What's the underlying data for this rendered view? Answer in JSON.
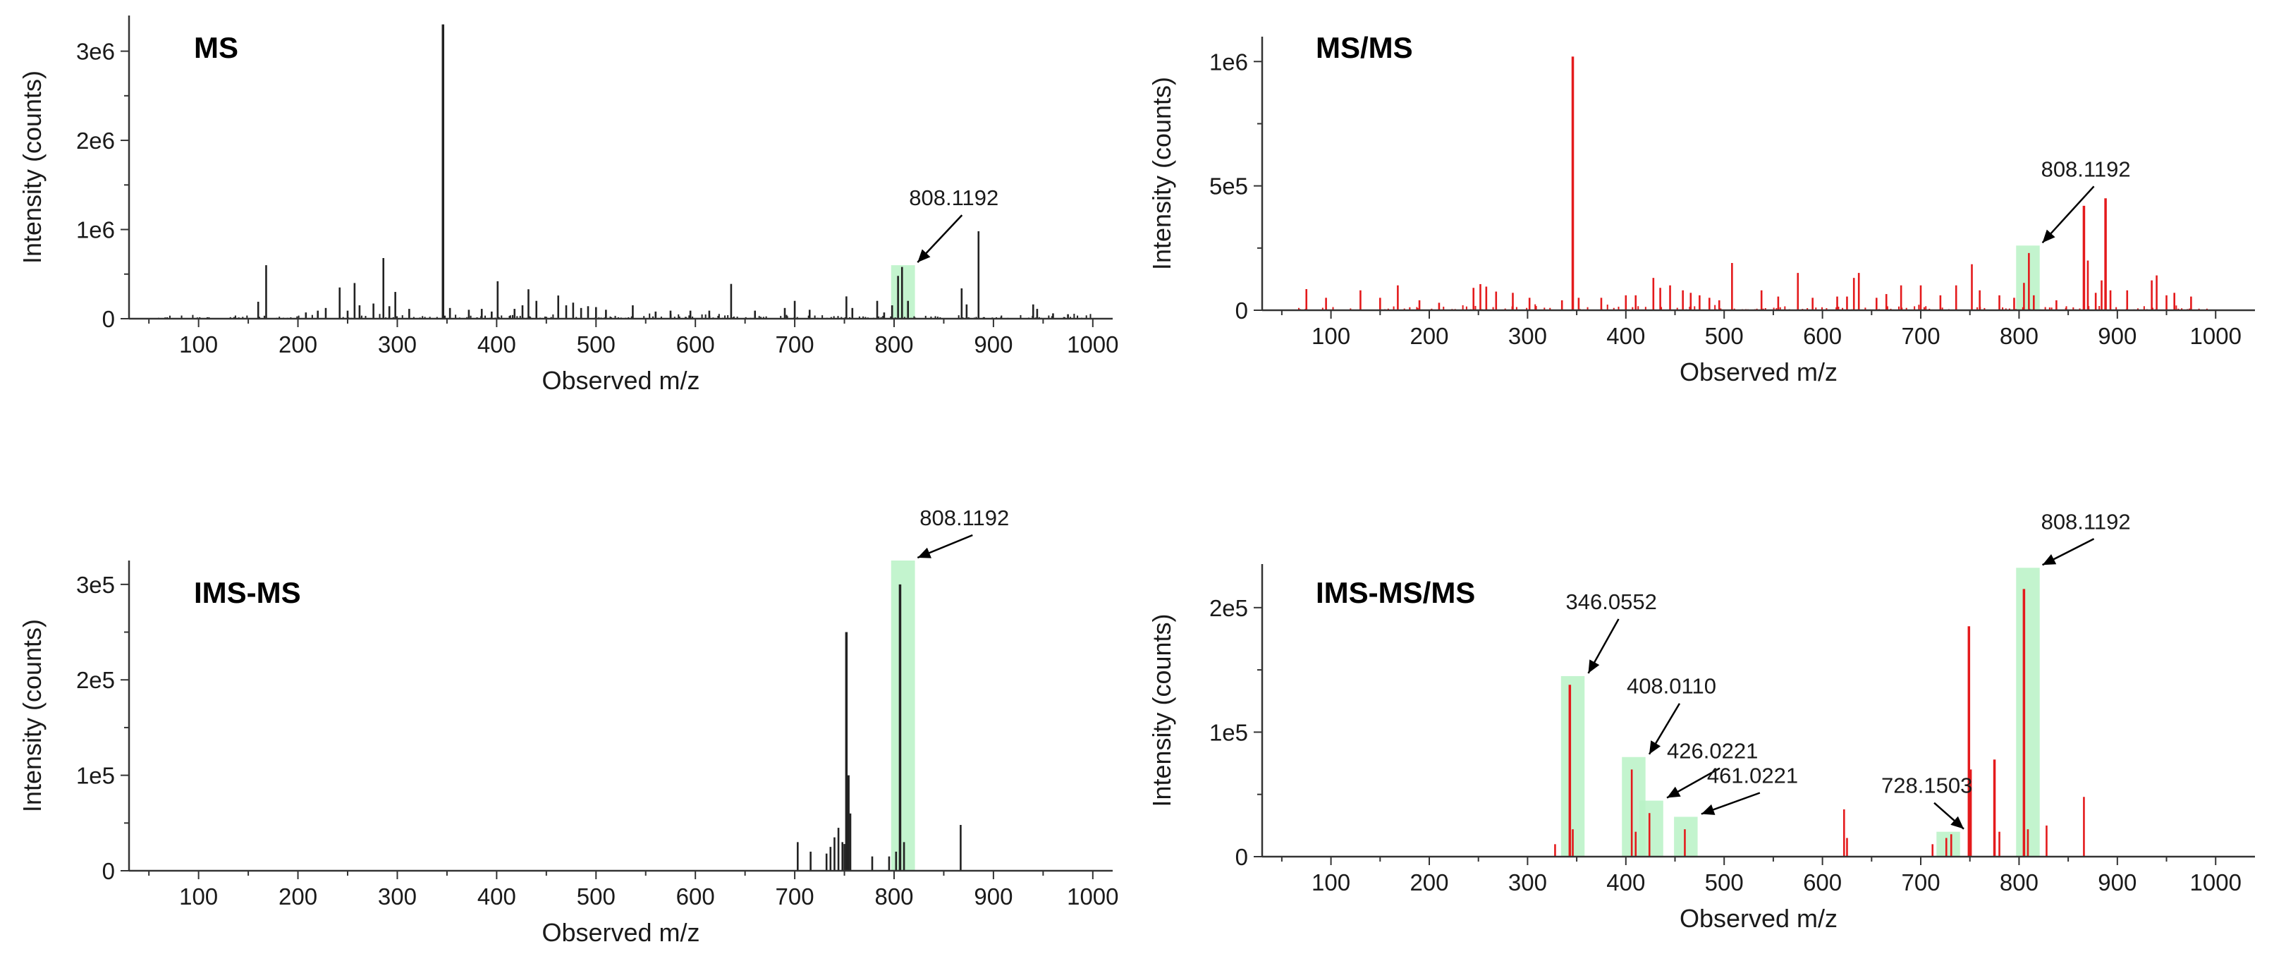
{
  "chart_data": [
    {
      "type": "bar",
      "title": "MS",
      "xlabel": "Observed m/z",
      "ylabel": "Intensity (counts)",
      "xlim": [
        30,
        1020
      ],
      "ylim": [
        0,
        3400000
      ],
      "xticks": [
        100,
        200,
        300,
        400,
        500,
        600,
        700,
        800,
        900,
        1000
      ],
      "yticks": [
        {
          "v": 0,
          "label": "0"
        },
        {
          "v": 1000000,
          "label": "1e6"
        },
        {
          "v": 2000000,
          "label": "2e6"
        },
        {
          "v": 3000000,
          "label": "3e6"
        }
      ],
      "color": "#222222",
      "highlights": [
        {
          "x0": 797,
          "x1": 821,
          "y": 600000
        }
      ],
      "annotations": [
        {
          "text": "808.1192",
          "x": 808,
          "y": 600000
        }
      ],
      "noise": {
        "from": 50,
        "to": 1000,
        "step": 3,
        "max": 60000,
        "seed": 11
      },
      "peaks": [
        [
          160,
          190000
        ],
        [
          168,
          600000
        ],
        [
          208,
          70000
        ],
        [
          220,
          90000
        ],
        [
          228,
          120000
        ],
        [
          242,
          350000
        ],
        [
          250,
          90000
        ],
        [
          257,
          400000
        ],
        [
          262,
          150000
        ],
        [
          276,
          170000
        ],
        [
          286,
          680000
        ],
        [
          292,
          140000
        ],
        [
          298,
          300000
        ],
        [
          312,
          110000
        ],
        [
          346,
          3300000
        ],
        [
          353,
          120000
        ],
        [
          372,
          100000
        ],
        [
          385,
          110000
        ],
        [
          395,
          80000
        ],
        [
          401,
          420000
        ],
        [
          418,
          110000
        ],
        [
          426,
          150000
        ],
        [
          432,
          330000
        ],
        [
          440,
          200000
        ],
        [
          462,
          260000
        ],
        [
          470,
          150000
        ],
        [
          477,
          180000
        ],
        [
          485,
          120000
        ],
        [
          492,
          140000
        ],
        [
          500,
          130000
        ],
        [
          510,
          100000
        ],
        [
          537,
          150000
        ],
        [
          560,
          80000
        ],
        [
          575,
          90000
        ],
        [
          595,
          90000
        ],
        [
          614,
          90000
        ],
        [
          636,
          390000
        ],
        [
          660,
          90000
        ],
        [
          690,
          120000
        ],
        [
          700,
          200000
        ],
        [
          715,
          100000
        ],
        [
          752,
          250000
        ],
        [
          758,
          120000
        ],
        [
          783,
          200000
        ],
        [
          790,
          70000
        ],
        [
          798,
          150000
        ],
        [
          804,
          480000
        ],
        [
          808,
          580000
        ],
        [
          814,
          200000
        ],
        [
          868,
          340000
        ],
        [
          873,
          160000
        ],
        [
          885,
          980000
        ],
        [
          940,
          160000
        ],
        [
          944,
          110000
        ],
        [
          960,
          60000
        ],
        [
          975,
          50000
        ]
      ]
    },
    {
      "type": "bar",
      "title": "MS/MS",
      "xlabel": "Observed m/z",
      "ylabel": "Intensity (counts)",
      "xlim": [
        30,
        1040
      ],
      "ylim": [
        0,
        1100000
      ],
      "xticks": [
        100,
        200,
        300,
        400,
        500,
        600,
        700,
        800,
        900,
        1000
      ],
      "yticks": [
        {
          "v": 0,
          "label": "0"
        },
        {
          "v": 500000,
          "label": "5e5"
        },
        {
          "v": 1000000,
          "label": "1e6"
        }
      ],
      "color": "#e41a1c",
      "highlights": [
        {
          "x0": 797,
          "x1": 821,
          "y": 260000
        }
      ],
      "annotations": [
        {
          "text": "808.1192",
          "x": 808,
          "y": 260000
        }
      ],
      "noise": {
        "from": 60,
        "to": 990,
        "step": 4,
        "max": 25000,
        "seed": 23
      },
      "peaks": [
        [
          75,
          85000
        ],
        [
          95,
          50000
        ],
        [
          130,
          80000
        ],
        [
          150,
          50000
        ],
        [
          168,
          100000
        ],
        [
          190,
          40000
        ],
        [
          210,
          30000
        ],
        [
          245,
          90000
        ],
        [
          252,
          105000
        ],
        [
          258,
          95000
        ],
        [
          268,
          75000
        ],
        [
          285,
          70000
        ],
        [
          302,
          50000
        ],
        [
          335,
          40000
        ],
        [
          346,
          1020000
        ],
        [
          352,
          50000
        ],
        [
          375,
          50000
        ],
        [
          400,
          60000
        ],
        [
          410,
          60000
        ],
        [
          428,
          130000
        ],
        [
          435,
          90000
        ],
        [
          445,
          100000
        ],
        [
          458,
          80000
        ],
        [
          466,
          70000
        ],
        [
          475,
          60000
        ],
        [
          485,
          50000
        ],
        [
          495,
          40000
        ],
        [
          508,
          190000
        ],
        [
          538,
          80000
        ],
        [
          555,
          55000
        ],
        [
          575,
          150000
        ],
        [
          590,
          50000
        ],
        [
          615,
          55000
        ],
        [
          625,
          55000
        ],
        [
          632,
          130000
        ],
        [
          637,
          150000
        ],
        [
          655,
          50000
        ],
        [
          665,
          65000
        ],
        [
          680,
          100000
        ],
        [
          700,
          100000
        ],
        [
          720,
          60000
        ],
        [
          736,
          100000
        ],
        [
          752,
          185000
        ],
        [
          760,
          80000
        ],
        [
          780,
          60000
        ],
        [
          795,
          50000
        ],
        [
          805,
          110000
        ],
        [
          810,
          230000
        ],
        [
          815,
          60000
        ],
        [
          838,
          40000
        ],
        [
          866,
          420000
        ],
        [
          870,
          200000
        ],
        [
          878,
          70000
        ],
        [
          884,
          120000
        ],
        [
          888,
          450000
        ],
        [
          893,
          80000
        ],
        [
          910,
          80000
        ],
        [
          935,
          120000
        ],
        [
          940,
          140000
        ],
        [
          950,
          60000
        ],
        [
          958,
          70000
        ],
        [
          975,
          55000
        ]
      ]
    },
    {
      "type": "bar",
      "title": "IMS-MS",
      "xlabel": "Observed m/z",
      "ylabel": "Intensity (counts)",
      "xlim": [
        30,
        1020
      ],
      "ylim": [
        0,
        325000
      ],
      "xticks": [
        100,
        200,
        300,
        400,
        500,
        600,
        700,
        800,
        900,
        1000
      ],
      "yticks": [
        {
          "v": 0,
          "label": "0"
        },
        {
          "v": 100000,
          "label": "1e5"
        },
        {
          "v": 200000,
          "label": "2e5"
        },
        {
          "v": 300000,
          "label": "3e5"
        }
      ],
      "color": "#222222",
      "highlights": [
        {
          "x0": 797,
          "x1": 821,
          "y": 325000
        }
      ],
      "annotations": [
        {
          "text": "808.1192",
          "x": 808,
          "y": 325000
        }
      ],
      "noise": null,
      "peaks": [
        [
          703,
          30000
        ],
        [
          716,
          20000
        ],
        [
          732,
          18000
        ],
        [
          736,
          25000
        ],
        [
          740,
          35000
        ],
        [
          744,
          45000
        ],
        [
          748,
          30000
        ],
        [
          750,
          28000
        ],
        [
          752,
          250000
        ],
        [
          754,
          100000
        ],
        [
          756,
          60000
        ],
        [
          778,
          15000
        ],
        [
          795,
          15000
        ],
        [
          802,
          20000
        ],
        [
          806,
          300000
        ],
        [
          810,
          30000
        ],
        [
          867,
          48000
        ]
      ]
    },
    {
      "type": "bar",
      "title": "IMS-MS/MS",
      "xlabel": "Observed m/z",
      "ylabel": "Intensity (counts)",
      "xlim": [
        30,
        1040
      ],
      "ylim": [
        0,
        235000
      ],
      "xticks": [
        100,
        200,
        300,
        400,
        500,
        600,
        700,
        800,
        900,
        1000
      ],
      "yticks": [
        {
          "v": 0,
          "label": "0"
        },
        {
          "v": 100000,
          "label": "1e5"
        },
        {
          "v": 200000,
          "label": "2e5"
        }
      ],
      "color": "#e41a1c",
      "highlights": [
        {
          "x0": 334,
          "x1": 358,
          "y": 145000
        },
        {
          "x0": 396,
          "x1": 420,
          "y": 80000
        },
        {
          "x0": 414,
          "x1": 438,
          "y": 45000
        },
        {
          "x0": 449,
          "x1": 473,
          "y": 32000
        },
        {
          "x0": 716,
          "x1": 740,
          "y": 20000
        },
        {
          "x0": 797,
          "x1": 821,
          "y": 232000
        }
      ],
      "annotations": [
        {
          "text": "346.0552",
          "x": 346,
          "y": 145000
        },
        {
          "text": "408.0110",
          "x": 408,
          "y": 80000
        },
        {
          "text": "426.0221",
          "x": 426,
          "y": 45000
        },
        {
          "text": "461.0221",
          "x": 461,
          "y": 32000
        },
        {
          "text": "728.1503",
          "x": 728,
          "y": 20000
        },
        {
          "text": "808.1192",
          "x": 808,
          "y": 232000
        }
      ],
      "noise": null,
      "peaks": [
        [
          328,
          10000
        ],
        [
          343,
          138000
        ],
        [
          346,
          22000
        ],
        [
          406,
          70000
        ],
        [
          410,
          20000
        ],
        [
          424,
          35000
        ],
        [
          460,
          22000
        ],
        [
          622,
          38000
        ],
        [
          625,
          15000
        ],
        [
          712,
          10000
        ],
        [
          726,
          15000
        ],
        [
          731,
          18000
        ],
        [
          749,
          185000
        ],
        [
          751,
          70000
        ],
        [
          775,
          78000
        ],
        [
          780,
          20000
        ],
        [
          805,
          215000
        ],
        [
          809,
          22000
        ],
        [
          828,
          25000
        ],
        [
          866,
          48000
        ]
      ]
    }
  ]
}
